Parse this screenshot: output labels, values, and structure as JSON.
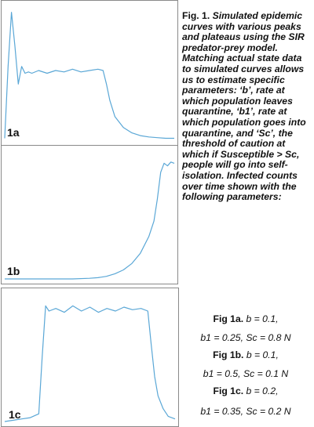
{
  "figure": {
    "caption_lead": "Fig. 1.",
    "caption_body": "Simulated epidemic curves with various peaks and plateaus using the SIR predator-prey model. Matching actual state data to simulated curves allows us to estimate specific parameters: ‘b’, rate at which population leaves quarantine, ‘b1’, rate at which population goes into quarantine, and ‘Sc’, the threshold of caution at which if Susceptible > Sc, people will go into self-isolation. Infected counts over time shown with the following parameters:",
    "params": [
      {
        "head": "Fig 1a.",
        "line1": "b = 0.1,",
        "line2": "b1 = 0.25,   Sc = 0.8 N"
      },
      {
        "head": "Fig 1b.",
        "line1": "b = 0.1,",
        "line2": "b1 = 0.5, Sc = 0.1 N"
      },
      {
        "head": "Fig 1c.",
        "line1": "b = 0.2,",
        "line2": "b1 = 0.35, Sc = 0.2 N"
      }
    ]
  },
  "chart_data": [
    {
      "type": "line",
      "panel_label": "1a",
      "line_color": "#5aa7d6",
      "grid": false,
      "x": [
        0,
        0.02,
        0.04,
        0.06,
        0.08,
        0.1,
        0.12,
        0.14,
        0.16,
        0.2,
        0.25,
        0.3,
        0.35,
        0.4,
        0.45,
        0.5,
        0.55,
        0.58,
        0.6,
        0.62,
        0.65,
        0.7,
        0.75,
        0.8,
        0.85,
        0.9,
        0.95,
        1.0
      ],
      "y": [
        0.02,
        0.55,
        0.95,
        0.7,
        0.42,
        0.55,
        0.5,
        0.51,
        0.5,
        0.52,
        0.5,
        0.52,
        0.51,
        0.53,
        0.51,
        0.52,
        0.53,
        0.52,
        0.42,
        0.3,
        0.18,
        0.1,
        0.06,
        0.04,
        0.03,
        0.025,
        0.02,
        0.02
      ],
      "ylim": [
        0,
        1
      ],
      "xlim": [
        0,
        1
      ]
    },
    {
      "type": "line",
      "panel_label": "1b",
      "line_color": "#5aa7d6",
      "grid": false,
      "x": [
        0,
        0.2,
        0.4,
        0.5,
        0.55,
        0.6,
        0.65,
        0.7,
        0.75,
        0.8,
        0.85,
        0.88,
        0.9,
        0.92,
        0.94,
        0.96,
        0.98,
        1.0
      ],
      "y": [
        0.0,
        0.0,
        0.0,
        0.005,
        0.01,
        0.02,
        0.04,
        0.07,
        0.12,
        0.2,
        0.33,
        0.45,
        0.62,
        0.83,
        0.9,
        0.88,
        0.91,
        0.9
      ],
      "ylim": [
        0,
        1
      ],
      "xlim": [
        0,
        1
      ]
    },
    {
      "type": "line",
      "panel_label": "1c",
      "line_color": "#5aa7d6",
      "grid": false,
      "x": [
        0,
        0.05,
        0.1,
        0.15,
        0.2,
        0.22,
        0.24,
        0.26,
        0.3,
        0.35,
        0.4,
        0.45,
        0.5,
        0.55,
        0.6,
        0.65,
        0.7,
        0.75,
        0.8,
        0.84,
        0.86,
        0.88,
        0.9,
        0.93,
        0.96,
        1.0
      ],
      "y": [
        0.0,
        0.01,
        0.02,
        0.03,
        0.06,
        0.5,
        0.9,
        0.86,
        0.88,
        0.85,
        0.9,
        0.86,
        0.89,
        0.85,
        0.88,
        0.86,
        0.89,
        0.87,
        0.88,
        0.86,
        0.6,
        0.35,
        0.2,
        0.1,
        0.04,
        0.02
      ],
      "ylim": [
        0,
        1
      ],
      "xlim": [
        0,
        1
      ]
    }
  ]
}
